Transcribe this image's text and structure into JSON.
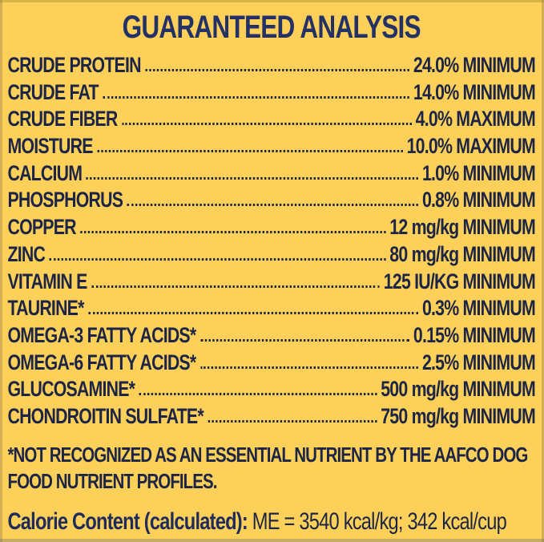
{
  "panel": {
    "title": "GUARANTEED ANALYSIS",
    "footnote_lines": [
      "*NOT RECOGNIZED AS AN ESSENTIAL NUTRIENT BY THE AAFCO DOG",
      "FOOD NUTRIENT PROFILES."
    ],
    "calorie": {
      "label": "Calorie Content (calculated):",
      "value": "ME = 3540 kcal/kg; 342 kcal/cup"
    }
  },
  "rows": [
    {
      "label": "CRUDE PROTEIN",
      "value": "24.0% MINIMUM"
    },
    {
      "label": "CRUDE FAT",
      "value": "14.0% MINIMUM"
    },
    {
      "label": "CRUDE FIBER",
      "value": "4.0% MAXIMUM"
    },
    {
      "label": "MOISTURE",
      "value": "10.0% MAXIMUM"
    },
    {
      "label": "CALCIUM",
      "value": "1.0% MINIMUM"
    },
    {
      "label": "PHOSPHORUS",
      "value": "0.8% MINIMUM"
    },
    {
      "label": "COPPER",
      "value": "12 mg/kg MINIMUM"
    },
    {
      "label": "ZINC",
      "value": "80 mg/kg MINIMUM"
    },
    {
      "label": "VITAMIN E",
      "value": "125 IU/KG MINIMUM"
    },
    {
      "label": "TAURINE*",
      "value": "0.3% MINIMUM"
    },
    {
      "label": "OMEGA-3 FATTY ACIDS*",
      "value": "0.15% MINIMUM"
    },
    {
      "label": "OMEGA-6 FATTY ACIDS*",
      "value": "2.5% MINIMUM"
    },
    {
      "label": "GLUCOSAMINE*",
      "value": "500 mg/kg MINIMUM"
    },
    {
      "label": "CHONDROITIN SULFATE*",
      "value": "750 mg/kg MINIMUM"
    }
  ],
  "colors": {
    "background": "#FDD05A",
    "text": "#1D2546",
    "title": "#233166"
  }
}
